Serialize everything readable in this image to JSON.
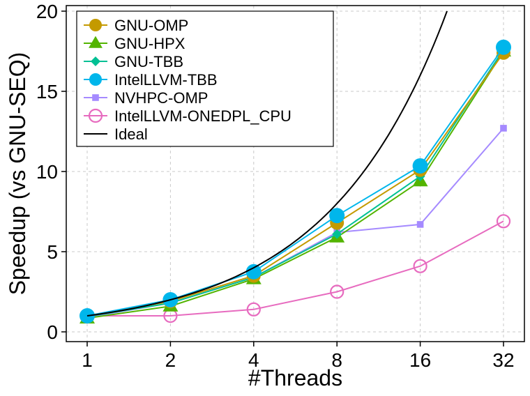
{
  "chart_data": {
    "type": "line",
    "title": "",
    "xlabel": "#Threads",
    "ylabel": "Speedup (vs GNU-SEQ)",
    "x": [
      1,
      2,
      4,
      8,
      16,
      32
    ],
    "x_tick_labels": [
      "1",
      "2",
      "4",
      "8",
      "16",
      "32"
    ],
    "x_scale": "log2",
    "ylim": [
      0,
      20
    ],
    "y_ticks": [
      0,
      5,
      10,
      15,
      20
    ],
    "y_tick_labels": [
      "0",
      "5",
      "10",
      "15",
      "20"
    ],
    "grid": true,
    "legend_position": "top-left",
    "series": [
      {
        "name": "GNU-OMP",
        "marker": "circle-filled",
        "color": "#c49a00",
        "values": [
          1.0,
          1.9,
          3.5,
          6.8,
          10.1,
          17.4
        ]
      },
      {
        "name": "GNU-HPX",
        "marker": "triangle-filled",
        "color": "#53b400",
        "values": [
          0.85,
          1.6,
          3.3,
          5.9,
          9.4,
          17.5
        ]
      },
      {
        "name": "GNU-TBB",
        "marker": "diamond-filled",
        "color": "#00c094",
        "values": [
          0.95,
          1.8,
          3.4,
          6.1,
          9.7,
          17.6
        ]
      },
      {
        "name": "IntelLLVM-TBB",
        "marker": "circle-filled",
        "color": "#00b6eb",
        "values": [
          1.0,
          2.0,
          3.75,
          7.25,
          10.35,
          17.75
        ]
      },
      {
        "name": "NVHPC-OMP",
        "marker": "square-filled",
        "color": "#a58aff",
        "values": [
          0.9,
          1.8,
          3.4,
          6.2,
          6.7,
          12.7
        ]
      },
      {
        "name": "IntelLLVM-ONEDPL_CPU",
        "marker": "circle-open",
        "color": "#e76bbf",
        "values": [
          1.0,
          1.0,
          1.4,
          2.5,
          4.1,
          6.9
        ]
      },
      {
        "name": "Ideal",
        "marker": "none",
        "color": "#000000",
        "values": [
          1,
          2,
          4,
          8,
          16,
          19.4
        ],
        "x_override_last": 20
      }
    ]
  }
}
